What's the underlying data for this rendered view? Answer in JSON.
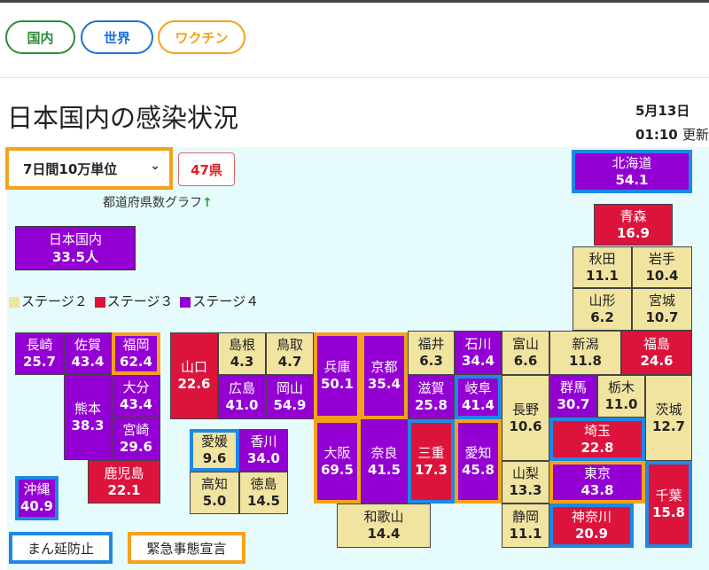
{
  "tabs": [
    {
      "label": "国内",
      "color": "#2e8b3a"
    },
    {
      "label": "世界",
      "color": "#1e6fd9"
    },
    {
      "label": "ワクチン",
      "color": "#f4a21c"
    }
  ],
  "page": {
    "title": "日本国内の感染状況",
    "date": "5月13日",
    "time": "01:10",
    "updated_suffix": "更新"
  },
  "controls": {
    "unit_select": "7日間10万単位",
    "prefecture_count": "47県",
    "graph_link": "都道府県数グラフ",
    "graph_arrow": "↑"
  },
  "national": {
    "label": "日本国内",
    "value": "33.5人"
  },
  "legend": [
    {
      "label": "ステージ２",
      "color": "#f0e4a0"
    },
    {
      "label": "ステージ３",
      "color": "#dc143c"
    },
    {
      "label": "ステージ４",
      "color": "#9400d3"
    }
  ],
  "border_legend": {
    "manbo": {
      "label": "まん延防止",
      "color": "#1e88e5"
    },
    "emergency": {
      "label": "緊急事態宣言",
      "color": "#f4a21c"
    }
  },
  "prefectures": [
    {
      "name": "北海道",
      "value": "54.1",
      "stage": 4,
      "border": "manbo"
    },
    {
      "name": "青森",
      "value": "16.9",
      "stage": 3,
      "border": ""
    },
    {
      "name": "秋田",
      "value": "11.1",
      "stage": 2,
      "border": ""
    },
    {
      "name": "岩手",
      "value": "10.4",
      "stage": 2,
      "border": ""
    },
    {
      "name": "山形",
      "value": "6.2",
      "stage": 2,
      "border": ""
    },
    {
      "name": "宮城",
      "value": "10.7",
      "stage": 2,
      "border": ""
    },
    {
      "name": "新潟",
      "value": "11.8",
      "stage": 2,
      "border": ""
    },
    {
      "name": "福島",
      "value": "24.6",
      "stage": 3,
      "border": ""
    },
    {
      "name": "富山",
      "value": "6.6",
      "stage": 2,
      "border": ""
    },
    {
      "name": "石川",
      "value": "34.4",
      "stage": 4,
      "border": ""
    },
    {
      "name": "福井",
      "value": "6.3",
      "stage": 2,
      "border": ""
    },
    {
      "name": "群馬",
      "value": "30.7",
      "stage": 4,
      "border": ""
    },
    {
      "name": "栃木",
      "value": "11.0",
      "stage": 2,
      "border": ""
    },
    {
      "name": "茨城",
      "value": "12.7",
      "stage": 2,
      "border": ""
    },
    {
      "name": "長野",
      "value": "10.6",
      "stage": 2,
      "border": ""
    },
    {
      "name": "岐阜",
      "value": "41.4",
      "stage": 4,
      "border": "manbo"
    },
    {
      "name": "滋賀",
      "value": "25.8",
      "stage": 4,
      "border": ""
    },
    {
      "name": "京都",
      "value": "35.4",
      "stage": 4,
      "border": "emergency"
    },
    {
      "name": "兵庫",
      "value": "50.1",
      "stage": 4,
      "border": "emergency"
    },
    {
      "name": "埼玉",
      "value": "22.8",
      "stage": 3,
      "border": "manbo"
    },
    {
      "name": "東京",
      "value": "43.8",
      "stage": 4,
      "border": "emergency"
    },
    {
      "name": "千葉",
      "value": "15.8",
      "stage": 3,
      "border": "manbo"
    },
    {
      "name": "神奈川",
      "value": "20.9",
      "stage": 3,
      "border": "manbo"
    },
    {
      "name": "山梨",
      "value": "13.3",
      "stage": 2,
      "border": ""
    },
    {
      "name": "静岡",
      "value": "11.1",
      "stage": 2,
      "border": ""
    },
    {
      "name": "愛知",
      "value": "45.8",
      "stage": 4,
      "border": "emergency"
    },
    {
      "name": "三重",
      "value": "17.3",
      "stage": 3,
      "border": "manbo"
    },
    {
      "name": "奈良",
      "value": "41.5",
      "stage": 4,
      "border": ""
    },
    {
      "name": "大阪",
      "value": "69.5",
      "stage": 4,
      "border": "emergency"
    },
    {
      "name": "和歌山",
      "value": "14.4",
      "stage": 2,
      "border": ""
    },
    {
      "name": "島根",
      "value": "4.3",
      "stage": 2,
      "border": ""
    },
    {
      "name": "鳥取",
      "value": "4.7",
      "stage": 2,
      "border": ""
    },
    {
      "name": "山口",
      "value": "22.6",
      "stage": 3,
      "border": ""
    },
    {
      "name": "広島",
      "value": "41.0",
      "stage": 4,
      "border": ""
    },
    {
      "name": "岡山",
      "value": "54.9",
      "stage": 4,
      "border": ""
    },
    {
      "name": "愛媛",
      "value": "9.6",
      "stage": 2,
      "border": "manbo"
    },
    {
      "name": "香川",
      "value": "34.0",
      "stage": 4,
      "border": ""
    },
    {
      "name": "高知",
      "value": "5.0",
      "stage": 2,
      "border": ""
    },
    {
      "name": "徳島",
      "value": "14.5",
      "stage": 2,
      "border": ""
    },
    {
      "name": "長崎",
      "value": "25.7",
      "stage": 4,
      "border": ""
    },
    {
      "name": "佐賀",
      "value": "43.4",
      "stage": 4,
      "border": ""
    },
    {
      "name": "福岡",
      "value": "62.4",
      "stage": 4,
      "border": "emergency"
    },
    {
      "name": "大分",
      "value": "43.4",
      "stage": 4,
      "border": ""
    },
    {
      "name": "熊本",
      "value": "38.3",
      "stage": 4,
      "border": ""
    },
    {
      "name": "宮崎",
      "value": "29.6",
      "stage": 4,
      "border": ""
    },
    {
      "name": "鹿児島",
      "value": "22.1",
      "stage": 3,
      "border": ""
    },
    {
      "name": "沖縄",
      "value": "40.9",
      "stage": 4,
      "border": "manbo"
    }
  ]
}
